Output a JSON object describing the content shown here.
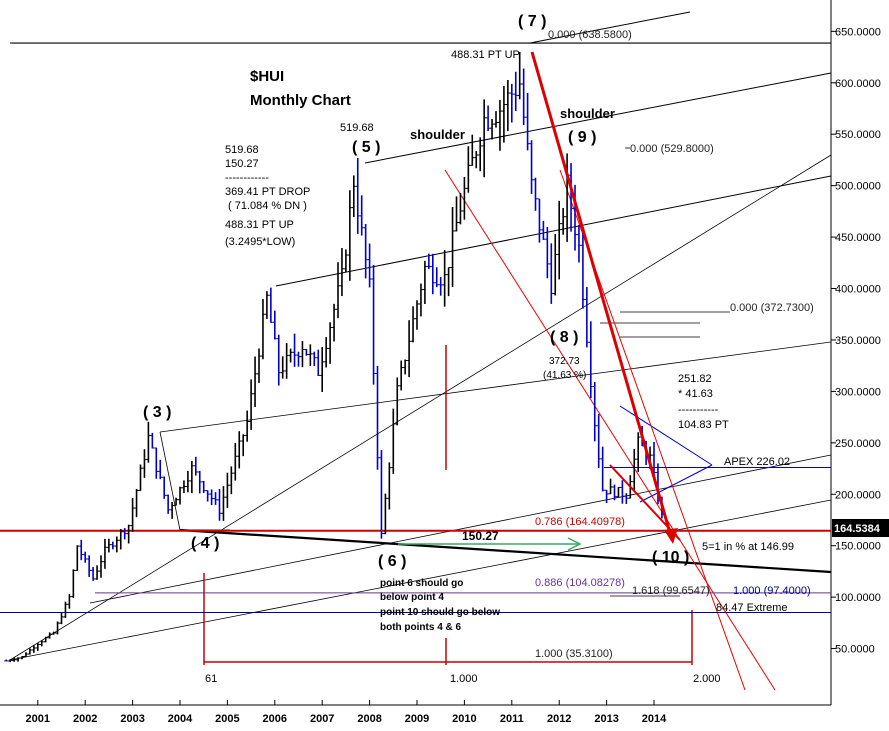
{
  "chart_data": {
    "type": "ohlc",
    "title": "$HUI",
    "subtitle": "Monthly Chart",
    "y_ticks": [
      "650.0000",
      "600.0000",
      "550.0000",
      "500.0000",
      "450.0000",
      "400.0000",
      "350.0000",
      "300.0000",
      "250.0000",
      "200.0000",
      "150.0000",
      "100.0000",
      "50.0000"
    ],
    "ylim": [
      0,
      680
    ],
    "x_ticks": [
      "2001",
      "2002",
      "2003",
      "2004",
      "2005",
      "2006",
      "2007",
      "2008",
      "2009",
      "2010",
      "2011",
      "2012",
      "2013",
      "2014"
    ],
    "last_price_label": "164.5384",
    "last_price": 164.5384,
    "monthly_close": [
      {
        "date": "2000-11",
        "close": 38
      },
      {
        "date": "2001-03",
        "close": 42
      },
      {
        "date": "2001-07",
        "close": 55
      },
      {
        "date": "2001-11",
        "close": 65
      },
      {
        "date": "2002-03",
        "close": 100
      },
      {
        "date": "2002-05",
        "close": 150
      },
      {
        "date": "2002-09",
        "close": 118
      },
      {
        "date": "2002-12",
        "close": 145
      },
      {
        "date": "2003-06",
        "close": 170
      },
      {
        "date": "2003-11",
        "close": 255
      },
      {
        "date": "2004-04",
        "close": 185
      },
      {
        "date": "2004-10",
        "close": 225
      },
      {
        "date": "2005-05",
        "close": 185
      },
      {
        "date": "2005-12",
        "close": 270
      },
      {
        "date": "2006-05",
        "close": 390
      },
      {
        "date": "2006-08",
        "close": 320
      },
      {
        "date": "2007-02",
        "close": 345
      },
      {
        "date": "2007-06",
        "close": 320
      },
      {
        "date": "2007-12",
        "close": 410
      },
      {
        "date": "2008-03",
        "close": 505
      },
      {
        "date": "2008-07",
        "close": 400
      },
      {
        "date": "2008-10",
        "close": 160
      },
      {
        "date": "2009-02",
        "close": 300
      },
      {
        "date": "2009-09",
        "close": 420
      },
      {
        "date": "2010-02",
        "close": 410
      },
      {
        "date": "2010-06",
        "close": 480
      },
      {
        "date": "2010-12",
        "close": 565
      },
      {
        "date": "2011-04",
        "close": 575
      },
      {
        "date": "2011-09",
        "close": 600
      },
      {
        "date": "2011-12",
        "close": 500
      },
      {
        "date": "2012-05",
        "close": 405
      },
      {
        "date": "2012-09",
        "close": 500
      },
      {
        "date": "2012-12",
        "close": 440
      },
      {
        "date": "2013-04",
        "close": 270
      },
      {
        "date": "2013-06",
        "close": 205
      },
      {
        "date": "2013-12",
        "close": 200
      },
      {
        "date": "2014-03",
        "close": 250
      },
      {
        "date": "2014-06",
        "close": 235
      },
      {
        "date": "2014-09",
        "close": 178
      }
    ],
    "horizontal_levels": [
      {
        "price": 164.5384,
        "color": "#cc0000"
      },
      {
        "price": 226.02,
        "color": "#0000cc"
      },
      {
        "price": 104.08,
        "color": "#663399"
      },
      {
        "price": 85.0,
        "color": "#000088"
      },
      {
        "price": 638.58,
        "color": "#000000"
      }
    ],
    "waves": [
      {
        "label": "( 3 )",
        "date": "2003-11",
        "price": 255
      },
      {
        "label": "( 4 )",
        "date": "2004-08",
        "price": 165
      },
      {
        "label": "( 5 )",
        "date": "2008-03",
        "price": 519.68
      },
      {
        "label": "( 6 )",
        "date": "2008-10",
        "price": 150.27
      },
      {
        "label": "( 7 )",
        "date": "2011-09",
        "price": 638.58
      },
      {
        "label": "( 8 )",
        "date": "2012-05",
        "price": 372.73
      },
      {
        "label": "( 9 )",
        "date": "2012-09",
        "price": 529.8
      },
      {
        "label": "( 10 )",
        "date": "2014-09",
        "price": 150
      }
    ],
    "annotations": {
      "drop_block": [
        "519.68",
        "150.27",
        "------------",
        "369.41 PT DROP",
        "( 71.084 % DN )",
        "488.31 PT UP",
        "(3.2495*LOW)"
      ],
      "p7_up": "488.31 PT UP",
      "fib_0_top": "0.000 (638.5800)",
      "shoulder_left": "shoulder",
      "shoulder_right": "shoulder",
      "peak_label_5": "519.68",
      "fib_0_529": "0.000 (529.8000)",
      "fib_0_372": "0.000 (372.7300)",
      "calc_8": [
        "372.73",
        "(41.63 %)"
      ],
      "calc_right": [
        "251.82",
        "*  41.63",
        "-----------",
        "104.83 PT"
      ],
      "apex": "APEX 226.02",
      "fib_786": "0.786 (164.40978)",
      "five_eq_one": "5=1 in % at 146.99",
      "line_150": "150.27",
      "fib_886": "0.886 (104.08278)",
      "fib_1618": "1.618 (99.6547)",
      "fib_1000_97": "1.000 (97.4000)",
      "extreme": "84.47 Extreme",
      "point_notes": [
        "point 6 should go",
        "below point 4",
        "point 10 should go below",
        "both points 4 & 6"
      ],
      "fib_1000_35": "1.000 (35.3100)",
      "time_61": "61",
      "time_1000": "1.000",
      "time_2000": "2.000"
    }
  }
}
